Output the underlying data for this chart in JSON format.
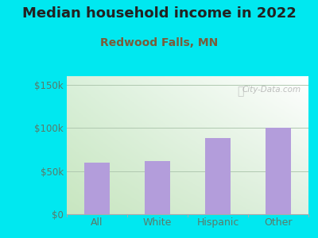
{
  "title": "Median household income in 2022",
  "subtitle": "Redwood Falls, MN",
  "categories": [
    "All",
    "White",
    "Hispanic",
    "Other"
  ],
  "values": [
    60000,
    62000,
    88000,
    100000
  ],
  "bar_color": "#b39ddb",
  "bg_color": "#00e8f0",
  "title_color": "#222222",
  "subtitle_color": "#7a5c3a",
  "ytick_color": "#5a7a6a",
  "xtick_color": "#5a7a6a",
  "yticks": [
    0,
    50000,
    100000,
    150000
  ],
  "ytick_labels": [
    "$0",
    "$50k",
    "$100k",
    "$150k"
  ],
  "ylim": [
    0,
    160000
  ],
  "watermark": "City-Data.com",
  "grid_color": "#b0c8b0",
  "title_fontsize": 13,
  "subtitle_fontsize": 10
}
